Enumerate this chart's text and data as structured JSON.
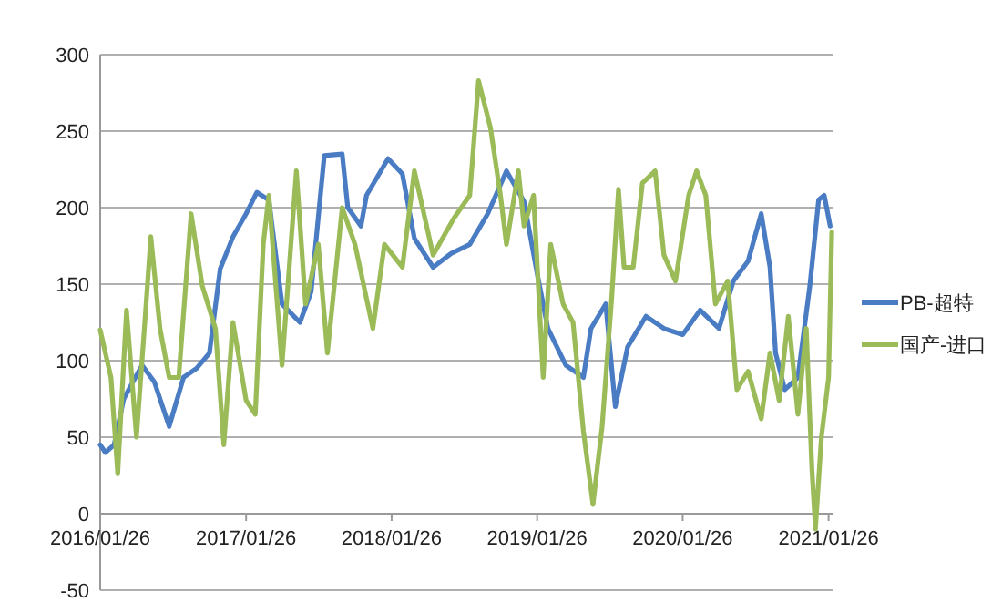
{
  "chart_data": {
    "type": "line",
    "x": [
      "2016-01-26",
      "2016-02-08",
      "2016-03-01",
      "2016-03-25",
      "2016-05-10",
      "2016-06-10",
      "2016-07-17",
      "2016-08-22",
      "2016-09-24",
      "2016-10-26",
      "2016-11-22",
      "2016-12-24",
      "2017-01-26",
      "2017-02-22",
      "2017-03-24",
      "2017-04-26",
      "2017-06-10",
      "2017-07-08",
      "2017-08-10",
      "2017-09-24",
      "2017-10-08",
      "2017-11-10",
      "2017-11-24",
      "2018-01-17",
      "2018-02-22",
      "2018-03-24",
      "2018-05-10",
      "2018-06-24",
      "2018-08-10",
      "2018-09-24",
      "2018-11-10",
      "2018-12-24",
      "2019-01-26",
      "2019-02-22",
      "2019-04-08",
      "2019-05-22",
      "2019-06-10",
      "2019-07-17",
      "2019-08-10",
      "2019-09-10",
      "2019-10-26",
      "2019-12-10",
      "2020-01-26",
      "2020-03-10",
      "2020-04-26",
      "2020-06-01",
      "2020-07-08",
      "2020-08-10",
      "2020-09-01",
      "2020-09-15",
      "2020-10-08",
      "2020-11-10",
      "2020-12-10",
      "2021-01-01",
      "2021-01-15",
      "2021-01-30"
    ],
    "series": [
      {
        "name": "PB-超特",
        "color": "#4a7cc4",
        "values": [
          45,
          40,
          45,
          75,
          97,
          86,
          57,
          89,
          95,
          105,
          160,
          181,
          196,
          210,
          205,
          137,
          125,
          145,
          234,
          235,
          200,
          188,
          208,
          232,
          222,
          180,
          161,
          170,
          176,
          196,
          224,
          204,
          157,
          121,
          97,
          89,
          121,
          137,
          70,
          109,
          129,
          121,
          117,
          133,
          121,
          152,
          165,
          196,
          161,
          105,
          81,
          89,
          149,
          205,
          208,
          188
        ]
      },
      {
        "name": "国产-进口",
        "color": "#9bbb59",
        "x": [
          "2016-01-26",
          "2016-02-22",
          "2016-03-10",
          "2016-04-01",
          "2016-04-26",
          "2016-05-18",
          "2016-06-01",
          "2016-06-24",
          "2016-07-17",
          "2016-08-10",
          "2016-09-10",
          "2016-10-08",
          "2016-11-10",
          "2016-12-01",
          "2016-12-24",
          "2017-01-26",
          "2017-02-18",
          "2017-03-10",
          "2017-03-24",
          "2017-04-26",
          "2017-06-01",
          "2017-06-24",
          "2017-07-26",
          "2017-08-18",
          "2017-09-24",
          "2017-10-26",
          "2017-12-10",
          "2018-01-08",
          "2018-02-22",
          "2018-03-24",
          "2018-05-10",
          "2018-07-01",
          "2018-08-10",
          "2018-09-01",
          "2018-10-01",
          "2018-10-26",
          "2018-11-10",
          "2018-12-10",
          "2018-12-24",
          "2019-01-17",
          "2019-02-10",
          "2019-03-01",
          "2019-04-01",
          "2019-04-26",
          "2019-05-22",
          "2019-06-15",
          "2019-07-08",
          "2019-08-01",
          "2019-08-18",
          "2019-09-01",
          "2019-09-24",
          "2019-10-17",
          "2019-11-18",
          "2019-12-10",
          "2020-01-08",
          "2020-02-10",
          "2020-03-01",
          "2020-03-24",
          "2020-04-17",
          "2020-05-18",
          "2020-06-10",
          "2020-07-08",
          "2020-08-10",
          "2020-09-01",
          "2020-09-24",
          "2020-10-17",
          "2020-11-10",
          "2020-12-01",
          "2020-12-15",
          "2020-12-24",
          "2021-01-08",
          "2021-01-26",
          "2021-02-03"
        ],
        "values": [
          120,
          89,
          26,
          133,
          50,
          129,
          181,
          121,
          89,
          89,
          196,
          149,
          121,
          45,
          125,
          74,
          65,
          176,
          208,
          97,
          224,
          137,
          176,
          105,
          200,
          176,
          121,
          176,
          161,
          224,
          169,
          193,
          208,
          283,
          252,
          208,
          176,
          224,
          188,
          208,
          89,
          176,
          137,
          125,
          54,
          6,
          57,
          141,
          212,
          161,
          161,
          216,
          224,
          169,
          152,
          208,
          224,
          208,
          137,
          152,
          81,
          93,
          62,
          105,
          74,
          129,
          65,
          121,
          30,
          -10,
          50,
          89,
          184
        ]
      }
    ],
    "xlim": [
      "2016-01-26",
      "2021-02-05"
    ],
    "xticks": [
      {
        "value": "2016-01-26",
        "label": "2016/01/26"
      },
      {
        "value": "2017-01-26",
        "label": "2017/01/26"
      },
      {
        "value": "2018-01-26",
        "label": "2018/01/26"
      },
      {
        "value": "2019-01-26",
        "label": "2019/01/26"
      },
      {
        "value": "2020-01-26",
        "label": "2020/01/26"
      },
      {
        "value": "2021-01-26",
        "label": "2021/01/26"
      }
    ],
    "ylim": [
      -50,
      300
    ],
    "yticks": [
      -50,
      0,
      50,
      100,
      150,
      200,
      250,
      300
    ],
    "grid": "y",
    "legend": "right",
    "marker": "none",
    "line_style": "solid"
  }
}
